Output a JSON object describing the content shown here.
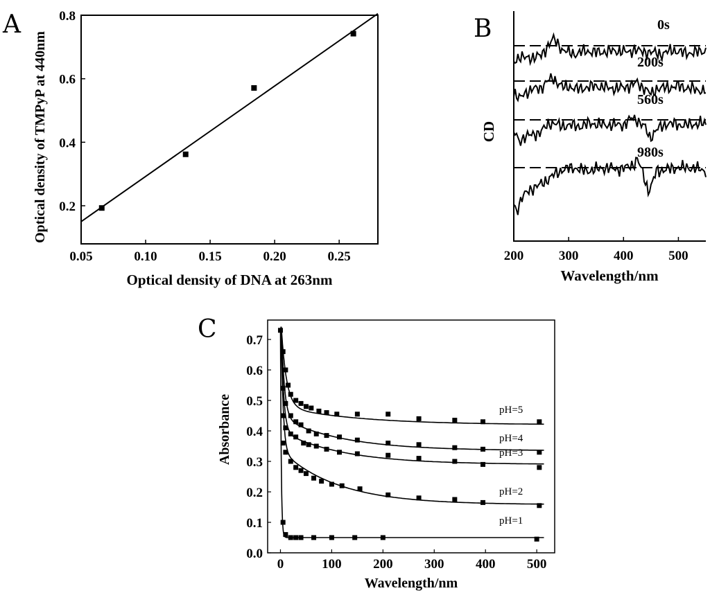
{
  "chart_data": [
    {
      "panel": "A",
      "type": "scatter",
      "xlabel": "Optical density of DNA at 263nm",
      "ylabel": "Optical density of TMPyP at 440nm",
      "xlim": [
        0.05,
        0.28
      ],
      "ylim": [
        0.08,
        0.8
      ],
      "xticks": [
        0.05,
        0.1,
        0.15,
        0.2,
        0.25
      ],
      "xtick_labels": [
        "0.05",
        "0.10",
        "0.15",
        "0.20",
        "0.25"
      ],
      "yticks": [
        0.2,
        0.4,
        0.6,
        0.8
      ],
      "ytick_labels": [
        "0.2",
        "0.4",
        "0.6",
        "0.8"
      ],
      "points": [
        {
          "x": 0.066,
          "y": 0.193
        },
        {
          "x": 0.131,
          "y": 0.362
        },
        {
          "x": 0.184,
          "y": 0.571
        },
        {
          "x": 0.261,
          "y": 0.742
        }
      ],
      "fit_line": {
        "x": [
          0.05,
          0.28
        ],
        "y": [
          0.15,
          0.805
        ]
      }
    },
    {
      "panel": "B",
      "type": "line",
      "xlabel": "Wavelength/nm",
      "ylabel": "CD",
      "xlim": [
        200,
        550
      ],
      "xticks": [
        200,
        300,
        400,
        500
      ],
      "xtick_labels": [
        "200",
        "300",
        "400",
        "500"
      ],
      "series": [
        {
          "name": "0s",
          "label": "0s",
          "baseline": 0.3,
          "x": [
            200,
            210,
            220,
            235,
            250,
            262,
            272,
            280,
            290,
            300,
            315,
            330,
            350,
            370,
            390,
            410,
            420,
            430,
            450,
            470,
            490,
            510,
            530,
            550
          ],
          "y": [
            0.65,
            0.35,
            0.45,
            0.4,
            0.3,
            -0.3,
            -0.7,
            -0.45,
            0.0,
            0.1,
            0.2,
            0.0,
            0.1,
            0.05,
            0.0,
            0.1,
            -0.1,
            0.05,
            0.1,
            0.2,
            -0.05,
            0.15,
            0.1,
            0.0
          ]
        },
        {
          "name": "200s",
          "label": "200s",
          "baseline": 0.3,
          "x": [
            200,
            210,
            220,
            235,
            250,
            262,
            272,
            280,
            290,
            300,
            315,
            330,
            350,
            370,
            390,
            410,
            425,
            440,
            450,
            460,
            480,
            500,
            520,
            550
          ],
          "y": [
            0.4,
            0.8,
            0.4,
            0.2,
            0.1,
            -0.3,
            -0.5,
            -0.2,
            0.1,
            0.0,
            0.2,
            0.1,
            0.0,
            0.1,
            0.15,
            0.0,
            -0.2,
            0.2,
            0.5,
            0.15,
            0.1,
            0.0,
            0.15,
            0.3
          ]
        },
        {
          "name": "560s",
          "label": "560s",
          "baseline": 0.2,
          "x": [
            200,
            210,
            220,
            235,
            250,
            265,
            275,
            285,
            300,
            320,
            340,
            360,
            380,
            400,
            415,
            425,
            440,
            448,
            460,
            480,
            500,
            520,
            540,
            550
          ],
          "y": [
            0.5,
            1.1,
            0.8,
            0.7,
            0.5,
            0.0,
            0.0,
            0.2,
            0.1,
            0.2,
            0.0,
            0.1,
            0.1,
            0.1,
            -0.3,
            -0.2,
            0.3,
            0.9,
            0.4,
            0.0,
            0.1,
            0.1,
            0.0,
            0.1
          ]
        },
        {
          "name": "980s",
          "label": "980s",
          "baseline": 0.0,
          "x": [
            200,
            205,
            215,
            230,
            250,
            270,
            290,
            310,
            330,
            350,
            370,
            390,
            405,
            418,
            425,
            435,
            445,
            452,
            460,
            480,
            500,
            520,
            540,
            550
          ],
          "y": [
            2.2,
            2.6,
            1.8,
            1.3,
            1.0,
            0.5,
            0.1,
            0.0,
            0.2,
            0.1,
            0.0,
            0.1,
            0.0,
            -0.2,
            -0.5,
            0.3,
            1.4,
            1.0,
            0.2,
            0.1,
            0.0,
            0.0,
            0.1,
            0.2
          ]
        }
      ]
    },
    {
      "panel": "C",
      "type": "scatter",
      "xlabel": "Wavelength/nm",
      "ylabel": "Absorbance",
      "xlim": [
        -25,
        535
      ],
      "ylim": [
        0.0,
        0.75
      ],
      "xticks": [
        0,
        100,
        200,
        300,
        400,
        500
      ],
      "xtick_labels": [
        "0",
        "100",
        "200",
        "300",
        "400",
        "500"
      ],
      "yticks": [
        0.0,
        0.1,
        0.2,
        0.3,
        0.4,
        0.5,
        0.6,
        0.7
      ],
      "ytick_labels": [
        "0.0",
        "0.1",
        "0.2",
        "0.3",
        "0.4",
        "0.5",
        "0.6",
        "0.7"
      ],
      "series": [
        {
          "name": "pH=5",
          "label": "pH=5",
          "points": [
            [
              0,
              0.73
            ],
            [
              5,
              0.66
            ],
            [
              10,
              0.6
            ],
            [
              15,
              0.55
            ],
            [
              20,
              0.52
            ],
            [
              30,
              0.5
            ],
            [
              40,
              0.49
            ],
            [
              50,
              0.48
            ],
            [
              60,
              0.475
            ],
            [
              75,
              0.465
            ],
            [
              90,
              0.46
            ],
            [
              110,
              0.455
            ],
            [
              150,
              0.455
            ],
            [
              210,
              0.455
            ],
            [
              270,
              0.44
            ],
            [
              340,
              0.435
            ],
            [
              395,
              0.43
            ],
            [
              505,
              0.43
            ]
          ],
          "fit": {
            "final": 0.42,
            "amp": 0.31,
            "tau": 10,
            "slow_amp": 0.06,
            "slow_tau": 150
          }
        },
        {
          "name": "pH=4",
          "label": "pH=4",
          "points": [
            [
              5,
              0.54
            ],
            [
              10,
              0.49
            ],
            [
              20,
              0.45
            ],
            [
              30,
              0.43
            ],
            [
              40,
              0.42
            ],
            [
              55,
              0.4
            ],
            [
              70,
              0.39
            ],
            [
              90,
              0.385
            ],
            [
              115,
              0.38
            ],
            [
              150,
              0.37
            ],
            [
              210,
              0.36
            ],
            [
              270,
              0.355
            ],
            [
              340,
              0.345
            ],
            [
              395,
              0.34
            ],
            [
              505,
              0.33
            ]
          ],
          "fit": {
            "final": 0.335,
            "amp": 0.4,
            "tau": 6,
            "slow_amp": 0.11,
            "slow_tau": 120
          }
        },
        {
          "name": "pH=3",
          "label": "pH=3",
          "points": [
            [
              5,
              0.45
            ],
            [
              10,
              0.41
            ],
            [
              20,
              0.39
            ],
            [
              30,
              0.38
            ],
            [
              45,
              0.36
            ],
            [
              55,
              0.355
            ],
            [
              70,
              0.35
            ],
            [
              90,
              0.34
            ],
            [
              115,
              0.33
            ],
            [
              150,
              0.325
            ],
            [
              210,
              0.32
            ],
            [
              270,
              0.31
            ],
            [
              340,
              0.3
            ],
            [
              395,
              0.29
            ],
            [
              505,
              0.28
            ]
          ],
          "fit": {
            "final": 0.29,
            "amp": 0.44,
            "tau": 5,
            "slow_amp": 0.11,
            "slow_tau": 120
          }
        },
        {
          "name": "pH=2",
          "label": "pH=2",
          "points": [
            [
              5,
              0.36
            ],
            [
              10,
              0.33
            ],
            [
              20,
              0.3
            ],
            [
              30,
              0.28
            ],
            [
              40,
              0.27
            ],
            [
              50,
              0.26
            ],
            [
              65,
              0.245
            ],
            [
              80,
              0.235
            ],
            [
              100,
              0.225
            ],
            [
              120,
              0.22
            ],
            [
              155,
              0.21
            ],
            [
              210,
              0.19
            ],
            [
              270,
              0.18
            ],
            [
              340,
              0.175
            ],
            [
              395,
              0.165
            ],
            [
              505,
              0.155
            ]
          ],
          "fit": {
            "final": 0.158,
            "amp": 0.57,
            "tau": 4,
            "slow_amp": 0.18,
            "slow_tau": 110
          }
        },
        {
          "name": "pH=1",
          "label": "pH=1",
          "points": [
            [
              5,
              0.1
            ],
            [
              10,
              0.06
            ],
            [
              20,
              0.05
            ],
            [
              30,
              0.05
            ],
            [
              40,
              0.05
            ],
            [
              65,
              0.05
            ],
            [
              100,
              0.05
            ],
            [
              145,
              0.05
            ],
            [
              200,
              0.05
            ],
            [
              500,
              0.045
            ]
          ],
          "fit": {
            "final": 0.05,
            "amp": 0.68,
            "tau": 1.6,
            "slow_amp": 0.0,
            "slow_tau": 100
          }
        }
      ]
    }
  ]
}
